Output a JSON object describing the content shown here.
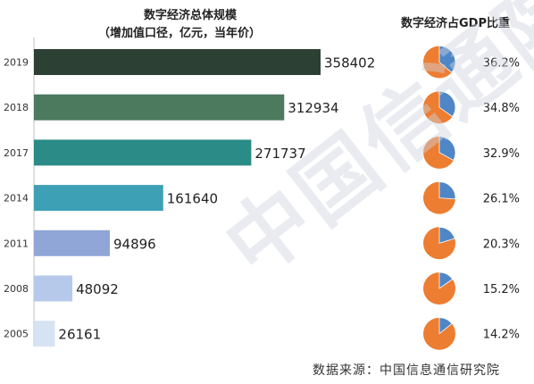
{
  "watermark": "中国信通院",
  "source": "数据来源：中国信息通信研究院",
  "chart_data": [
    {
      "type": "bar",
      "orientation": "horizontal",
      "title": "数字经济总体规模",
      "subtitle": "（增加值口径，亿元，当年价）",
      "categories": [
        "2019",
        "2018",
        "2017",
        "2014",
        "2011",
        "2008",
        "2005"
      ],
      "values": [
        358402,
        312934,
        271737,
        161640,
        94896,
        48092,
        26161
      ],
      "colors": [
        "#2c4034",
        "#4c7a5f",
        "#2b8b86",
        "#3da0b5",
        "#8fa6d6",
        "#b6c9ea",
        "#d6e3f3"
      ],
      "xlim": [
        0,
        358402
      ],
      "grid": false
    },
    {
      "type": "pie",
      "title": "数字经济占GDP比重",
      "categories": [
        "2019",
        "2018",
        "2017",
        "2014",
        "2011",
        "2008",
        "2005"
      ],
      "values": [
        36.2,
        34.8,
        32.9,
        26.1,
        20.3,
        15.2,
        14.2
      ],
      "labels": [
        "36.2%",
        "34.8%",
        "32.9%",
        "26.1%",
        "20.3%",
        "15.2%",
        "14.2%"
      ],
      "colors": {
        "share": "#4f86c6",
        "rest": "#ed7d31"
      }
    }
  ]
}
